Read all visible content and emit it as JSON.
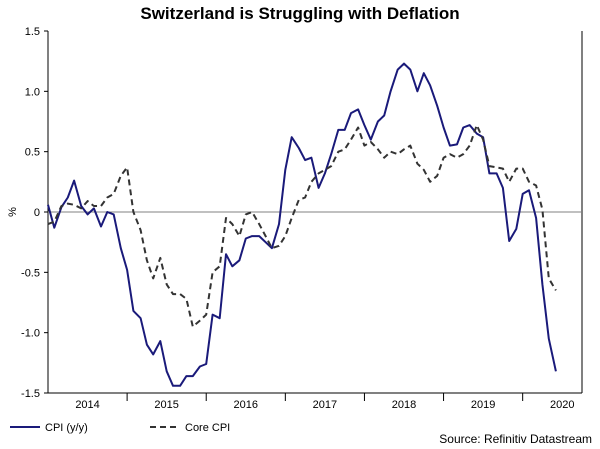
{
  "chart_data": {
    "type": "line",
    "title": "Switzerland is Struggling with Deflation",
    "ylabel": "%",
    "xlabel": "",
    "ylim": [
      -1.5,
      1.5
    ],
    "xlim": [
      2013.5,
      2020.25
    ],
    "y_ticks": [
      1.5,
      1.0,
      0.5,
      0,
      -0.5,
      -1.0,
      -1.5
    ],
    "y_tick_labels": [
      "1.5",
      "1.0",
      "0.5",
      "0",
      "-0.5",
      "-1.0",
      "-1.5"
    ],
    "x_tick_labels": [
      {
        "label": "2014",
        "x": 2014.0
      },
      {
        "label": "2015",
        "x": 2015.0
      },
      {
        "label": "2016",
        "x": 2016.0
      },
      {
        "label": "2017",
        "x": 2017.0
      },
      {
        "label": "2018",
        "x": 2018.0
      },
      {
        "label": "2019",
        "x": 2019.0
      },
      {
        "label": "2020",
        "x": 2020.0
      }
    ],
    "year_boundaries": [
      2014.5,
      2015.5,
      2016.5,
      2017.5,
      2018.5,
      2019.5
    ],
    "zero_line": true,
    "series": [
      {
        "name": "CPI (y/y)",
        "color": "#1a1a7a",
        "style": "solid",
        "points": [
          [
            2013.5,
            0.06
          ],
          [
            2013.58,
            -0.13
          ],
          [
            2013.67,
            0.04
          ],
          [
            2013.75,
            0.12
          ],
          [
            2013.83,
            0.26
          ],
          [
            2013.92,
            0.05
          ],
          [
            2014.0,
            -0.02
          ],
          [
            2014.08,
            0.03
          ],
          [
            2014.17,
            -0.12
          ],
          [
            2014.25,
            0.0
          ],
          [
            2014.33,
            -0.02
          ],
          [
            2014.42,
            -0.3
          ],
          [
            2014.5,
            -0.48
          ],
          [
            2014.58,
            -0.82
          ],
          [
            2014.67,
            -0.88
          ],
          [
            2014.75,
            -1.1
          ],
          [
            2014.83,
            -1.18
          ],
          [
            2014.92,
            -1.07
          ],
          [
            2015.0,
            -1.32
          ],
          [
            2015.08,
            -1.44
          ],
          [
            2015.17,
            -1.44
          ],
          [
            2015.25,
            -1.36
          ],
          [
            2015.33,
            -1.36
          ],
          [
            2015.42,
            -1.28
          ],
          [
            2015.5,
            -1.26
          ],
          [
            2015.58,
            -0.85
          ],
          [
            2015.67,
            -0.88
          ],
          [
            2015.75,
            -0.35
          ],
          [
            2015.83,
            -0.45
          ],
          [
            2015.92,
            -0.4
          ],
          [
            2016.0,
            -0.22
          ],
          [
            2016.08,
            -0.2
          ],
          [
            2016.17,
            -0.2
          ],
          [
            2016.25,
            -0.25
          ],
          [
            2016.33,
            -0.3
          ],
          [
            2016.42,
            -0.1
          ],
          [
            2016.5,
            0.35
          ],
          [
            2016.58,
            0.62
          ],
          [
            2016.67,
            0.53
          ],
          [
            2016.75,
            0.43
          ],
          [
            2016.83,
            0.45
          ],
          [
            2016.92,
            0.2
          ],
          [
            2017.0,
            0.32
          ],
          [
            2017.08,
            0.48
          ],
          [
            2017.17,
            0.68
          ],
          [
            2017.25,
            0.68
          ],
          [
            2017.33,
            0.82
          ],
          [
            2017.42,
            0.85
          ],
          [
            2017.5,
            0.72
          ],
          [
            2017.58,
            0.6
          ],
          [
            2017.67,
            0.75
          ],
          [
            2017.75,
            0.8
          ],
          [
            2017.83,
            1.0
          ],
          [
            2017.92,
            1.18
          ],
          [
            2018.0,
            1.23
          ],
          [
            2018.08,
            1.18
          ],
          [
            2018.17,
            1.0
          ],
          [
            2018.25,
            1.15
          ],
          [
            2018.33,
            1.05
          ],
          [
            2018.42,
            0.88
          ],
          [
            2018.5,
            0.7
          ],
          [
            2018.58,
            0.55
          ],
          [
            2018.67,
            0.56
          ],
          [
            2018.75,
            0.7
          ],
          [
            2018.83,
            0.72
          ],
          [
            2018.92,
            0.65
          ],
          [
            2019.0,
            0.62
          ],
          [
            2019.08,
            0.32
          ],
          [
            2019.17,
            0.32
          ],
          [
            2019.25,
            0.2
          ],
          [
            2019.33,
            -0.24
          ],
          [
            2019.42,
            -0.14
          ],
          [
            2019.5,
            0.15
          ],
          [
            2019.58,
            0.18
          ],
          [
            2019.67,
            -0.05
          ],
          [
            2019.75,
            -0.6
          ],
          [
            2019.83,
            -1.05
          ],
          [
            2019.92,
            -1.32
          ]
        ]
      },
      {
        "name": "Core CPI",
        "color": "#333333",
        "style": "dashed",
        "points": [
          [
            2013.5,
            -0.1
          ],
          [
            2013.58,
            -0.08
          ],
          [
            2013.67,
            0.05
          ],
          [
            2013.75,
            0.07
          ],
          [
            2013.83,
            0.06
          ],
          [
            2013.92,
            0.03
          ],
          [
            2014.0,
            0.09
          ],
          [
            2014.08,
            0.05
          ],
          [
            2014.17,
            0.05
          ],
          [
            2014.25,
            0.12
          ],
          [
            2014.33,
            0.15
          ],
          [
            2014.42,
            0.3
          ],
          [
            2014.5,
            0.37
          ],
          [
            2014.58,
            0.0
          ],
          [
            2014.67,
            -0.15
          ],
          [
            2014.75,
            -0.4
          ],
          [
            2014.83,
            -0.55
          ],
          [
            2014.92,
            -0.38
          ],
          [
            2015.0,
            -0.6
          ],
          [
            2015.08,
            -0.68
          ],
          [
            2015.17,
            -0.68
          ],
          [
            2015.25,
            -0.72
          ],
          [
            2015.33,
            -0.95
          ],
          [
            2015.42,
            -0.9
          ],
          [
            2015.5,
            -0.85
          ],
          [
            2015.58,
            -0.5
          ],
          [
            2015.67,
            -0.45
          ],
          [
            2015.75,
            -0.05
          ],
          [
            2015.83,
            -0.1
          ],
          [
            2015.92,
            -0.2
          ],
          [
            2016.0,
            -0.02
          ],
          [
            2016.08,
            0.0
          ],
          [
            2016.17,
            -0.1
          ],
          [
            2016.25,
            -0.2
          ],
          [
            2016.33,
            -0.3
          ],
          [
            2016.42,
            -0.28
          ],
          [
            2016.5,
            -0.2
          ],
          [
            2016.58,
            -0.05
          ],
          [
            2016.67,
            0.1
          ],
          [
            2016.75,
            0.12
          ],
          [
            2016.83,
            0.25
          ],
          [
            2016.92,
            0.32
          ],
          [
            2017.0,
            0.35
          ],
          [
            2017.08,
            0.38
          ],
          [
            2017.17,
            0.5
          ],
          [
            2017.25,
            0.52
          ],
          [
            2017.33,
            0.6
          ],
          [
            2017.42,
            0.7
          ],
          [
            2017.5,
            0.55
          ],
          [
            2017.58,
            0.58
          ],
          [
            2017.67,
            0.52
          ],
          [
            2017.75,
            0.45
          ],
          [
            2017.83,
            0.5
          ],
          [
            2017.92,
            0.48
          ],
          [
            2018.0,
            0.52
          ],
          [
            2018.08,
            0.55
          ],
          [
            2018.17,
            0.4
          ],
          [
            2018.25,
            0.35
          ],
          [
            2018.33,
            0.25
          ],
          [
            2018.42,
            0.3
          ],
          [
            2018.5,
            0.45
          ],
          [
            2018.58,
            0.48
          ],
          [
            2018.67,
            0.45
          ],
          [
            2018.75,
            0.48
          ],
          [
            2018.83,
            0.55
          ],
          [
            2018.92,
            0.72
          ],
          [
            2019.0,
            0.6
          ],
          [
            2019.08,
            0.38
          ],
          [
            2019.17,
            0.37
          ],
          [
            2019.25,
            0.36
          ],
          [
            2019.33,
            0.25
          ],
          [
            2019.42,
            0.36
          ],
          [
            2019.5,
            0.36
          ],
          [
            2019.58,
            0.25
          ],
          [
            2019.67,
            0.22
          ],
          [
            2019.75,
            0.02
          ],
          [
            2019.83,
            -0.55
          ],
          [
            2019.92,
            -0.65
          ]
        ]
      }
    ],
    "legend": {
      "placement": "bottom-left"
    },
    "source": "Source: Refinitiv Datastream"
  }
}
